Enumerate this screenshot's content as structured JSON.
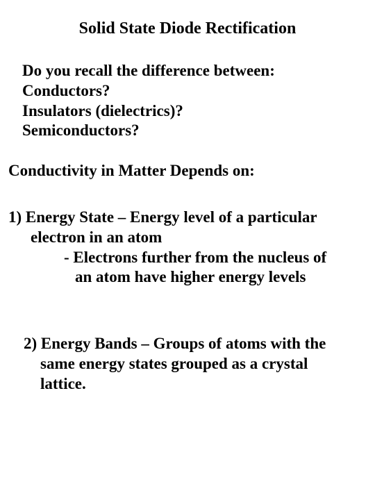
{
  "title": "Solid State Diode Rectification",
  "intro": {
    "q": "Do you recall the difference between:",
    "a": "Conductors?",
    "b": "Insulators (dielectrics)?",
    "c": "Semiconductors?"
  },
  "conductivity": "Conductivity in Matter Depends on:",
  "point1": {
    "l1": "1) Energy State – Energy level of a particular",
    "l2": "electron in an atom",
    "l3": "- Electrons further from the nucleus of",
    "l4": "an atom have higher energy levels"
  },
  "point2": {
    "l1": "2) Energy Bands – Groups of atoms with the",
    "l2a": "same energy states grouped as a crystal",
    "l2b": "lattice."
  },
  "colors": {
    "background": "#ffffff",
    "text": "#000000"
  },
  "typography": {
    "family": "Times New Roman",
    "title_fontsize": 24,
    "body_fontsize": 23,
    "weight": "bold"
  }
}
